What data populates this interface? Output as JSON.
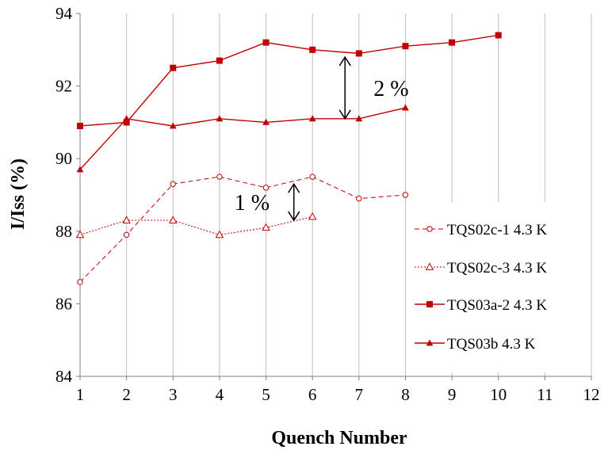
{
  "chart_data": {
    "type": "line",
    "title": "",
    "xlabel": "Quench Number",
    "ylabel": "I/Iss (%)",
    "xlim": [
      1,
      12
    ],
    "ylim": [
      84,
      94
    ],
    "xticks": [
      1,
      2,
      3,
      4,
      5,
      6,
      7,
      8,
      9,
      10,
      11,
      12
    ],
    "yticks": [
      84,
      86,
      88,
      90,
      92,
      94
    ],
    "grid": "vertical",
    "legend_position": "right",
    "series": [
      {
        "name": "TQS02c-1 4.3 K",
        "x": [
          1,
          2,
          3,
          4,
          5,
          6,
          7,
          8
        ],
        "y": [
          86.6,
          87.9,
          89.3,
          89.5,
          89.2,
          89.5,
          88.9,
          89.0
        ],
        "color": "#c00000",
        "marker": "circle-open",
        "line": "dashed"
      },
      {
        "name": "TQS02c-3 4.3 K",
        "x": [
          1,
          2,
          3,
          4,
          5,
          6
        ],
        "y": [
          87.9,
          88.3,
          88.3,
          87.9,
          88.1,
          88.4
        ],
        "color": "#c00000",
        "marker": "triangle-open",
        "line": "dotted"
      },
      {
        "name": "TQS03a-2 4.3 K",
        "x": [
          1,
          2,
          3,
          4,
          5,
          6,
          7,
          8,
          9,
          10
        ],
        "y": [
          90.9,
          91.0,
          92.5,
          92.7,
          93.2,
          93.0,
          92.9,
          93.1,
          93.2,
          93.4
        ],
        "color": "#c00000",
        "marker": "square",
        "line": "solid"
      },
      {
        "name": "TQS03b 4.3 K",
        "x": [
          1,
          2,
          3,
          4,
          5,
          6,
          7,
          8
        ],
        "y": [
          89.7,
          91.1,
          90.9,
          91.1,
          91.0,
          91.1,
          91.1,
          91.4
        ],
        "color": "#c00000",
        "marker": "triangle",
        "line": "solid"
      }
    ],
    "annotations": [
      {
        "text": "2 %",
        "x_from": 6.7,
        "y_from": 91.1,
        "y_to": 92.8
      },
      {
        "text": "1 %",
        "x_from": 5.6,
        "y_from": 88.3,
        "y_to": 89.3
      }
    ]
  }
}
